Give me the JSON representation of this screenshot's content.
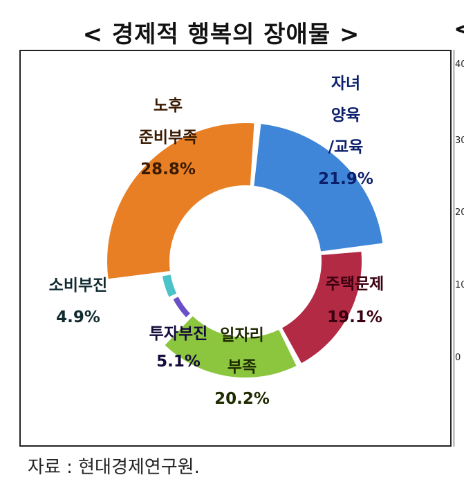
{
  "title": "< 경제적 행복의 장애물 >",
  "title_cut": "<",
  "source": "자료 : 현대경제연구원.",
  "right_axis_ticks": [
    "40",
    "30",
    "20",
    "10",
    "0"
  ],
  "chart_data": {
    "type": "pie",
    "title": "< 경제적 행복의 장애물 >",
    "categories": [
      "자녀 양육/교육",
      "주택문제",
      "일자리 부족",
      "투자부진",
      "소비부진",
      "노후 준비부족"
    ],
    "values": [
      21.9,
      19.1,
      20.2,
      5.1,
      4.9,
      28.8
    ],
    "value_labels": [
      "21.9%",
      "19.1%",
      "20.2%",
      "5.1%",
      "4.9%",
      "28.8%"
    ],
    "label_lines": [
      [
        "자녀",
        "양육",
        "/교육"
      ],
      [
        "주택문제"
      ],
      [
        "일자리",
        "부족"
      ],
      [
        "투자부진"
      ],
      [
        "소비부진"
      ],
      [
        "노후",
        "준비부족"
      ]
    ],
    "colors": [
      "#3f86d9",
      "#b22a44",
      "#8cc63f",
      "#6a4fc8",
      "#4cc3c8",
      "#e87f24"
    ],
    "legend": "none"
  }
}
